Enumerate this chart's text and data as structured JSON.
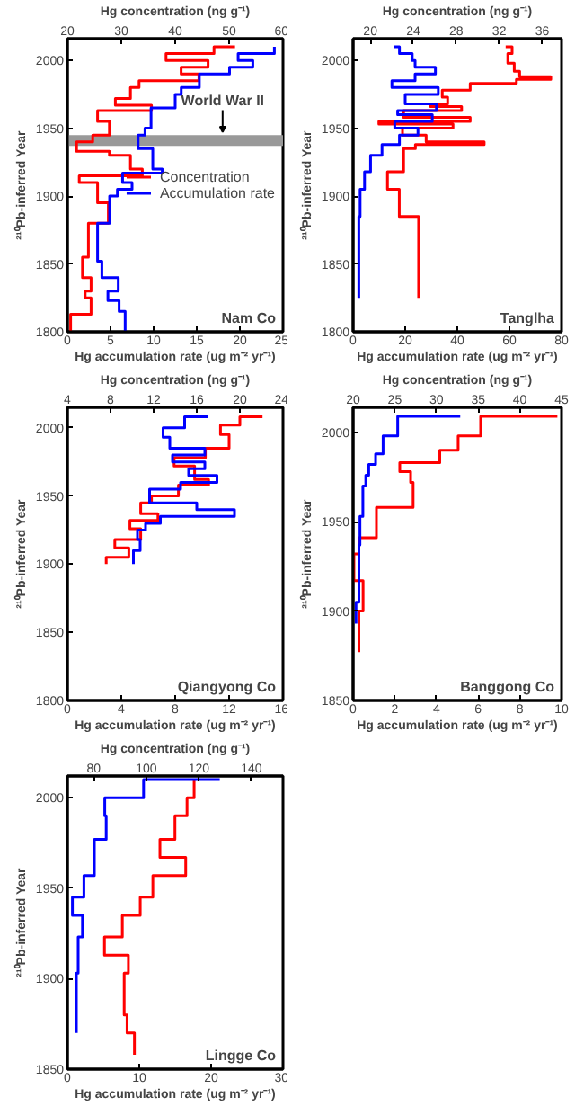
{
  "chart_data": [
    {
      "type": "line",
      "title": "Nam Co",
      "xlabel": "Hg accumulation rate (ug m⁻² yr⁻¹)",
      "x2label": "Hg concentration (ng g⁻¹)",
      "ylabel": "²¹⁰Pb-inferred Year",
      "xlim": [
        0,
        25
      ],
      "xticks": [
        0,
        5,
        10,
        15,
        20,
        25
      ],
      "x2lim": [
        20,
        60
      ],
      "x2ticks": [
        20,
        30,
        40,
        50,
        60
      ],
      "ylim": [
        1800,
        2016
      ],
      "yticks": [
        1800,
        1850,
        1900,
        1950,
        2000
      ],
      "grid": false,
      "legend": "right",
      "bands": [
        {
          "axis": "y",
          "from": 1937,
          "to": 1945,
          "label": "World War II",
          "color": "#999999"
        }
      ],
      "series": [
        {
          "name": "Concentration",
          "color": "#ff0000",
          "axis": "x2",
          "x": [
            20.6,
            20.6,
            24.4,
            24.4,
            23.3,
            23.3,
            24.4,
            24.4,
            22.8,
            22.8,
            23.9,
            23.9,
            27.6,
            27.6,
            25.6,
            25.6,
            22.2,
            22.2,
            33.9,
            33.9,
            31.7,
            31.7,
            27.8,
            27.8,
            21.7,
            21.7,
            24.7,
            24.7,
            27.8,
            27.8,
            25.6,
            25.6,
            35.6,
            35.6,
            28.9,
            28.9,
            31.7,
            31.7,
            33.3,
            33.3,
            44.4,
            44.4,
            41.1,
            41.1,
            46.1,
            46.1,
            38.3,
            38.3,
            47.2,
            47.2,
            51.1
          ],
          "values": [
            1800,
            1813,
            1813,
            1825,
            1825,
            1830,
            1830,
            1840,
            1840,
            1855,
            1855,
            1880,
            1880,
            1895,
            1895,
            1910,
            1910,
            1915,
            1915,
            1920,
            1920,
            1930,
            1930,
            1933,
            1933,
            1940,
            1940,
            1945,
            1945,
            1955,
            1955,
            1963,
            1963,
            1967,
            1967,
            1972,
            1972,
            1980,
            1980,
            1985,
            1985,
            1990,
            1990,
            1995,
            1995,
            2000,
            2000,
            2005,
            2005,
            2010,
            2010
          ]
        },
        {
          "name": "Accumulation rate",
          "color": "#0000ff",
          "x": [
            6.7,
            6.7,
            6.0,
            6.0,
            4.7,
            4.7,
            5.9,
            5.9,
            4.0,
            4.0,
            3.5,
            3.5,
            4.9,
            4.9,
            5.8,
            5.8,
            7.5,
            7.5,
            6.4,
            6.4,
            11.0,
            11.0,
            9.9,
            9.9,
            8.2,
            8.2,
            9.0,
            9.0,
            9.7,
            9.7,
            12.5,
            12.5,
            13.2,
            13.2,
            15.3,
            15.3,
            18.8,
            18.8,
            21.5,
            21.5,
            19.8,
            19.8,
            24.0,
            24.0
          ],
          "values": [
            1800,
            1815,
            1815,
            1823,
            1823,
            1830,
            1830,
            1840,
            1840,
            1852,
            1852,
            1880,
            1880,
            1900,
            1900,
            1905,
            1905,
            1910,
            1910,
            1917,
            1917,
            1920,
            1920,
            1935,
            1935,
            1945,
            1945,
            1950,
            1950,
            1965,
            1965,
            1975,
            1975,
            1980,
            1980,
            1990,
            1990,
            1995,
            1995,
            2000,
            2000,
            2005,
            2005,
            2010
          ]
        }
      ]
    },
    {
      "type": "line",
      "title": "Tanglha",
      "xlabel": "Hg accumulation rate (ug m⁻² yr⁻¹)",
      "x2label": "Hg concentration (ng g⁻¹)",
      "ylabel": "²¹⁰Pb-inferred Year",
      "xlim": [
        0,
        80
      ],
      "xticks": [
        0,
        20,
        40,
        60,
        80
      ],
      "x2lim": [
        18.4,
        37.8
      ],
      "x2ticks": [
        20,
        24,
        28,
        32,
        36
      ],
      "ylim": [
        1800,
        2016
      ],
      "yticks": [
        1800,
        1850,
        1900,
        1950,
        2000
      ],
      "grid": false,
      "series": [
        {
          "color": "#ff0000",
          "axis": "x2",
          "x": [
            24.5,
            24.5,
            22.7,
            22.7,
            21.6,
            21.6,
            23.1,
            23.1,
            24.2,
            24.2,
            30.6,
            30.6,
            25.2,
            25.2,
            23.0,
            23.0,
            27.7,
            27.7,
            20.8,
            20.8,
            29.3,
            29.3,
            23.1,
            23.1,
            28.5,
            28.5,
            25.6,
            25.6,
            27.2,
            27.2,
            26.7,
            26.7,
            29.3,
            29.3,
            33.6,
            33.6,
            36.8,
            36.8,
            33.9,
            33.9,
            33.4,
            33.4,
            32.8,
            32.8,
            33.2,
            33.2,
            32.6
          ],
          "values": [
            1825,
            1885,
            1885,
            1905,
            1905,
            1918,
            1918,
            1935,
            1935,
            1938,
            1938,
            1940,
            1940,
            1945,
            1945,
            1950,
            1950,
            1953,
            1953,
            1955,
            1955,
            1958,
            1958,
            1963,
            1963,
            1966,
            1966,
            1968,
            1968,
            1973,
            1973,
            1978,
            1978,
            1983,
            1983,
            1986,
            1986,
            1988,
            1988,
            1992,
            1992,
            1998,
            1998,
            2005,
            2005,
            2010,
            2010
          ]
        },
        {
          "color": "#0000ff",
          "x": [
            2.2,
            2.2,
            2.7,
            2.7,
            4.4,
            4.4,
            6.7,
            6.7,
            11.1,
            11.1,
            17.8,
            17.8,
            24.9,
            24.9,
            16.0,
            16.0,
            30.4,
            30.4,
            17.1,
            17.1,
            32.0,
            32.0,
            20.0,
            20.0,
            32.7,
            32.7,
            14.9,
            14.9,
            23.8,
            23.8,
            31.6,
            31.6,
            23.8,
            23.8,
            22.7,
            22.7,
            17.8,
            17.8,
            15.6
          ],
          "values": [
            1825,
            1885,
            1885,
            1905,
            1905,
            1918,
            1918,
            1930,
            1930,
            1938,
            1938,
            1945,
            1945,
            1950,
            1950,
            1955,
            1955,
            1960,
            1960,
            1963,
            1963,
            1968,
            1968,
            1975,
            1975,
            1980,
            1980,
            1985,
            1985,
            1990,
            1990,
            1995,
            1995,
            2000,
            2000,
            2005,
            2005,
            2010,
            2010
          ]
        }
      ]
    },
    {
      "type": "line",
      "title": "Qiangyong Co",
      "xlabel": "Hg accumulation rate (ug m⁻² yr⁻¹)",
      "x2label": "Hg concentration (ng g⁻¹)",
      "ylabel": "²¹⁰Pb-inferred Year",
      "xlim": [
        0,
        16
      ],
      "xticks": [
        0,
        4,
        8,
        12,
        16
      ],
      "x2lim": [
        4,
        24
      ],
      "x2ticks": [
        4,
        8,
        12,
        16,
        20,
        24
      ],
      "ylim": [
        1800,
        2015
      ],
      "yticks": [
        1800,
        1850,
        1900,
        1950,
        2000
      ],
      "grid": false,
      "series": [
        {
          "color": "#ff0000",
          "axis": "x2",
          "x": [
            7.6,
            7.6,
            9.7,
            9.7,
            8.4,
            8.4,
            10.8,
            10.8,
            9.8,
            9.8,
            12.4,
            12.4,
            10.8,
            10.8,
            11.8,
            11.8,
            14.3,
            14.3,
            17.1,
            17.1,
            15.8,
            15.8,
            13.9,
            13.9,
            16.8,
            16.8,
            19.0,
            19.0,
            18.2,
            18.2,
            20.0,
            20.0,
            22.1
          ],
          "values": [
            1900,
            1905,
            1905,
            1912,
            1912,
            1918,
            1918,
            1926,
            1926,
            1932,
            1932,
            1937,
            1937,
            1945,
            1945,
            1950,
            1950,
            1958,
            1958,
            1962,
            1962,
            1972,
            1972,
            1978,
            1978,
            1985,
            1985,
            1995,
            1995,
            2002,
            2002,
            2008,
            2008
          ]
        },
        {
          "color": "#0000ff",
          "x": [
            4.9,
            4.9,
            5.4,
            5.4,
            5.2,
            5.2,
            5.8,
            5.8,
            6.9,
            6.9,
            12.4,
            12.4,
            9.6,
            9.6,
            6.1,
            6.1,
            8.4,
            8.4,
            11.1,
            11.1,
            9.0,
            9.0,
            10.2,
            10.2,
            7.8,
            7.8,
            10.2,
            10.2,
            7.6,
            7.6,
            7.1,
            7.1,
            8.7,
            8.7,
            10.4
          ],
          "values": [
            1900,
            1910,
            1910,
            1918,
            1918,
            1925,
            1925,
            1930,
            1930,
            1935,
            1935,
            1940,
            1940,
            1945,
            1945,
            1955,
            1955,
            1960,
            1960,
            1965,
            1965,
            1970,
            1970,
            1975,
            1975,
            1980,
            1980,
            1985,
            1985,
            1993,
            1993,
            2000,
            2000,
            2008,
            2008
          ]
        }
      ]
    },
    {
      "type": "line",
      "title": "Banggong Co",
      "xlabel": "Hg accumulation rate (ug m⁻² yr⁻¹)",
      "x2label": "Hg concentration (ng g⁻¹)",
      "ylabel": "²¹⁰Pb-inferred Year",
      "xlim": [
        0,
        10
      ],
      "xticks": [
        0,
        2,
        4,
        6,
        8,
        10
      ],
      "x2lim": [
        20,
        45
      ],
      "x2ticks": [
        20,
        25,
        30,
        35,
        40,
        45
      ],
      "ylim": [
        1850,
        2014
      ],
      "yticks": [
        1850,
        1900,
        1950,
        2000
      ],
      "grid": false,
      "series": [
        {
          "color": "#ff0000",
          "axis": "x2",
          "x": [
            20.7,
            20.7,
            21.2,
            21.2,
            20.1,
            20.1,
            20.7,
            20.7,
            22.8,
            22.8,
            27.2,
            27.2,
            26.9,
            26.9,
            25.6,
            25.6,
            30.4,
            30.4,
            32.6,
            32.6,
            35.3,
            35.3,
            44.5
          ],
          "values": [
            1877,
            1900,
            1900,
            1917,
            1917,
            1932,
            1932,
            1941,
            1941,
            1958,
            1958,
            1972,
            1972,
            1978,
            1978,
            1983,
            1983,
            1990,
            1990,
            1998,
            1998,
            2009,
            2009
          ]
        },
        {
          "color": "#0000ff",
          "x": [
            0.14,
            0.14,
            0.28,
            0.28,
            0.33,
            0.33,
            0.47,
            0.47,
            0.61,
            0.61,
            0.75,
            0.75,
            1.08,
            1.08,
            1.44,
            1.44,
            2.14,
            2.14,
            5.14
          ],
          "values": [
            1893,
            1905,
            1905,
            1937,
            1937,
            1953,
            1953,
            1970,
            1970,
            1976,
            1976,
            1982,
            1982,
            1988,
            1988,
            1998,
            1998,
            2009,
            2009
          ]
        }
      ]
    },
    {
      "type": "line",
      "title": "Lingge Co",
      "xlabel": "Hg accumulation rate (ug m⁻² yr⁻¹)",
      "x2label": "Hg concentration (ng g⁻¹)",
      "ylabel": "²¹⁰Pb-inferred Year",
      "xlim": [
        0,
        30
      ],
      "xticks": [
        0,
        10,
        20,
        30
      ],
      "x2lim": [
        70,
        152
      ],
      "x2ticks": [
        80,
        100,
        120,
        140
      ],
      "ylim": [
        1850,
        2012
      ],
      "yticks": [
        1850,
        1900,
        1950,
        2000
      ],
      "grid": false,
      "series": [
        {
          "color": "#ff0000",
          "axis": "x2",
          "x": [
            95.5,
            95.5,
            92.7,
            92.7,
            91.6,
            91.6,
            93.2,
            93.2,
            84.1,
            84.1,
            90.9,
            90.9,
            97.7,
            97.7,
            102.5,
            102.5,
            115.0,
            115.0,
            105.2,
            105.2,
            110.9,
            110.9,
            115.5,
            115.5,
            118.2,
            118.2
          ],
          "values": [
            1858,
            1870,
            1870,
            1880,
            1880,
            1903,
            1903,
            1913,
            1913,
            1923,
            1923,
            1935,
            1935,
            1945,
            1945,
            1957,
            1957,
            1967,
            1967,
            1977,
            1977,
            1990,
            1990,
            2000,
            2000,
            2010
          ]
        },
        {
          "color": "#0000ff",
          "x": [
            1.25,
            1.25,
            1.5,
            1.5,
            2.1,
            2.1,
            0.7,
            0.7,
            2.3,
            2.3,
            3.75,
            3.75,
            5.4,
            5.4,
            5.2,
            5.2,
            10.6,
            10.6,
            21.2
          ],
          "values": [
            1870,
            1903,
            1903,
            1923,
            1923,
            1935,
            1935,
            1945,
            1945,
            1957,
            1957,
            1977,
            1977,
            1990,
            1990,
            2000,
            2000,
            2010,
            2010
          ]
        }
      ]
    }
  ]
}
